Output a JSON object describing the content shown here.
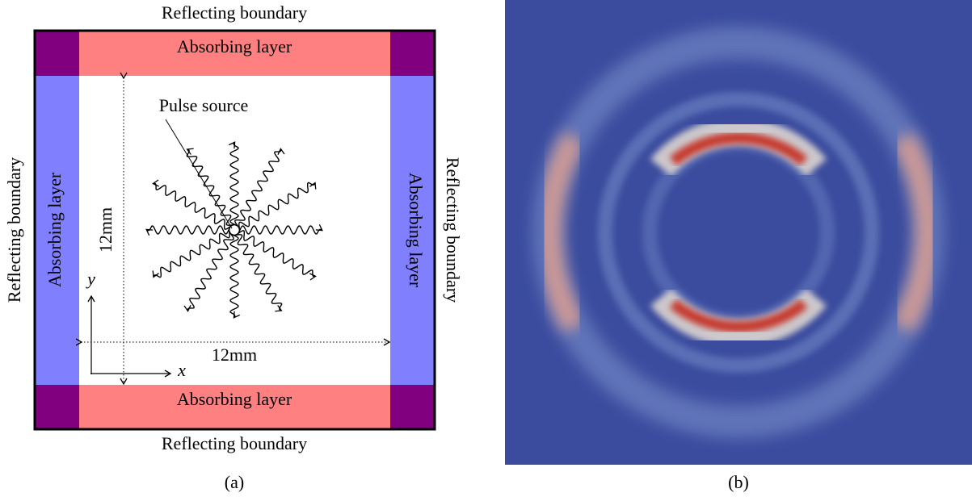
{
  "panel_a": {
    "top_label": "Reflecting boundary",
    "bottom_label": "Reflecting boundary",
    "left_label": "Reflecting boundary",
    "right_label": "Reflecting boundary",
    "absorbing_top": "Absorbing layer",
    "absorbing_bottom": "Absorbing layer",
    "absorbing_left": "Absorbing layer",
    "absorbing_right": "Absorbing layer",
    "source_label": "Pulse source",
    "height_label": "12mm",
    "width_label": "12mm",
    "y_axis_label": "y",
    "x_axis_label": "x",
    "caption": "(a)"
  },
  "panel_b": {
    "caption": "(b)"
  }
}
